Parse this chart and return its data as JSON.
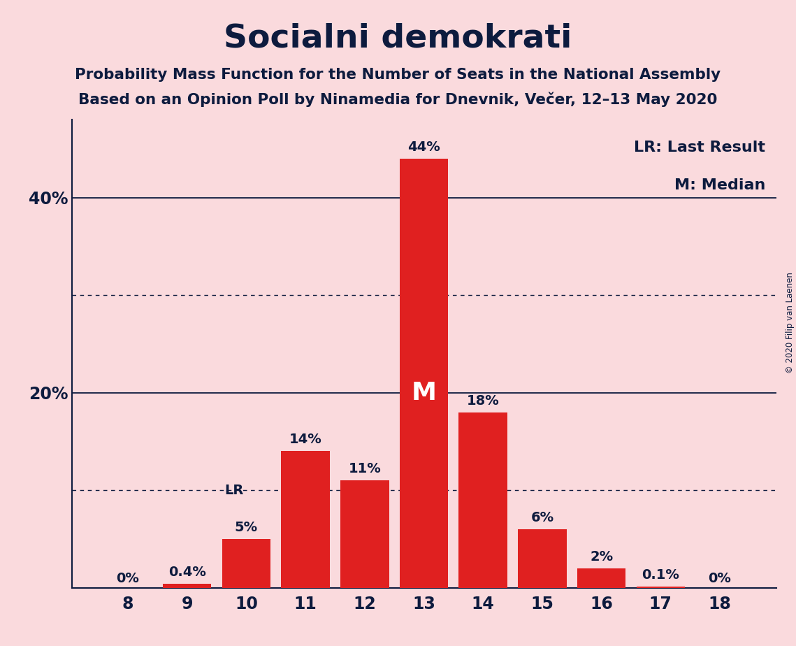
{
  "title": "Socialni demokrati",
  "subtitle1": "Probability Mass Function for the Number of Seats in the National Assembly",
  "subtitle2": "Based on an Opinion Poll by Ninamedia for Dnevnik, Večer, 12–13 May 2020",
  "copyright": "© 2020 Filip van Laenen",
  "legend_lr": "LR: Last Result",
  "legend_m": "M: Median",
  "seats": [
    8,
    9,
    10,
    11,
    12,
    13,
    14,
    15,
    16,
    17,
    18
  ],
  "values": [
    0.0,
    0.4,
    5.0,
    14.0,
    11.0,
    44.0,
    18.0,
    6.0,
    2.0,
    0.1,
    0.0
  ],
  "labels": [
    "0%",
    "0.4%",
    "5%",
    "14%",
    "11%",
    "44%",
    "18%",
    "6%",
    "2%",
    "0.1%",
    "0%"
  ],
  "bar_color": "#e02020",
  "background_color": "#fadadd",
  "text_color": "#0d1b3e",
  "median_seat": 13,
  "lr_seat": 10,
  "ylim": [
    0,
    48
  ],
  "solid_yticks": [
    20,
    40
  ],
  "dotted_yticks": [
    10,
    30
  ]
}
